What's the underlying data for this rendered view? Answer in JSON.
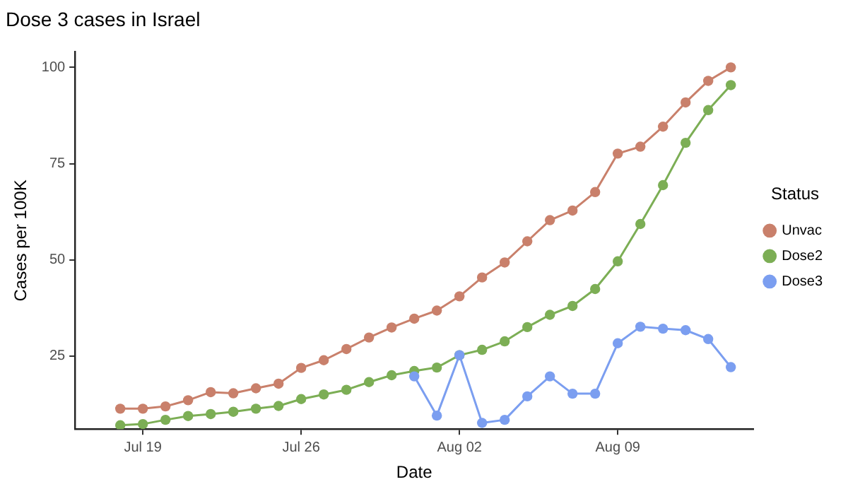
{
  "chart_data": {
    "type": "line",
    "title": "Dose 3 cases in Israel",
    "xlabel": "Date",
    "ylabel": "Cases per 100K",
    "legend_title": "Status",
    "legend": "right",
    "grid": false,
    "marker": "circle",
    "line_style": "solid",
    "x": [
      "--07-18",
      "--07-19",
      "--07-20",
      "--07-21",
      "--07-22",
      "--07-23",
      "--07-24",
      "--07-25",
      "--07-26",
      "--07-27",
      "--07-28",
      "--07-29",
      "--07-30",
      "--07-31",
      "--08-01",
      "--08-02",
      "--08-03",
      "--08-04",
      "--08-05",
      "--08-06",
      "--08-07",
      "--08-08",
      "--08-09",
      "--08-10",
      "--08-11",
      "--08-12",
      "--08-13",
      "--08-14"
    ],
    "xlim": [
      "--07-16",
      "--08-15"
    ],
    "xticks": [
      {
        "value": "--07-19",
        "label": "Jul 19"
      },
      {
        "value": "--07-26",
        "label": "Jul 26"
      },
      {
        "value": "--08-02",
        "label": "Aug 02"
      },
      {
        "value": "--08-09",
        "label": "Aug 09"
      }
    ],
    "ylim": [
      6,
      104
    ],
    "yticks": [
      25,
      50,
      75,
      100
    ],
    "series": [
      {
        "name": "Unvac",
        "color": "#c9806b",
        "values": [
          11.3,
          11.3,
          11.9,
          13.5,
          15.6,
          15.3,
          16.6,
          17.8,
          21.9,
          23.9,
          26.8,
          29.8,
          32.4,
          34.7,
          36.8,
          40.5,
          45.4,
          49.3,
          54.8,
          60.3,
          62.8,
          67.6,
          77.6,
          79.4,
          84.6,
          90.9,
          96.5,
          100.0
        ]
      },
      {
        "name": "Dose2",
        "color": "#7cae55",
        "values": [
          7.0,
          7.3,
          8.4,
          9.4,
          9.9,
          10.5,
          11.3,
          12.0,
          13.8,
          15.0,
          16.2,
          18.2,
          20.0,
          21.1,
          22.0,
          25.2,
          26.6,
          28.8,
          32.5,
          35.7,
          38.0,
          42.4,
          49.6,
          59.3,
          69.4,
          80.4,
          88.9,
          95.4
        ]
      },
      {
        "name": "Dose3",
        "color": "#7b9ef0",
        "values": [
          null,
          null,
          null,
          null,
          null,
          null,
          null,
          null,
          null,
          null,
          null,
          null,
          null,
          19.7,
          9.5,
          25.2,
          7.6,
          8.4,
          14.5,
          19.7,
          15.2,
          15.2,
          28.3,
          32.6,
          32.1,
          31.7,
          29.4,
          22.1
        ]
      }
    ]
  }
}
